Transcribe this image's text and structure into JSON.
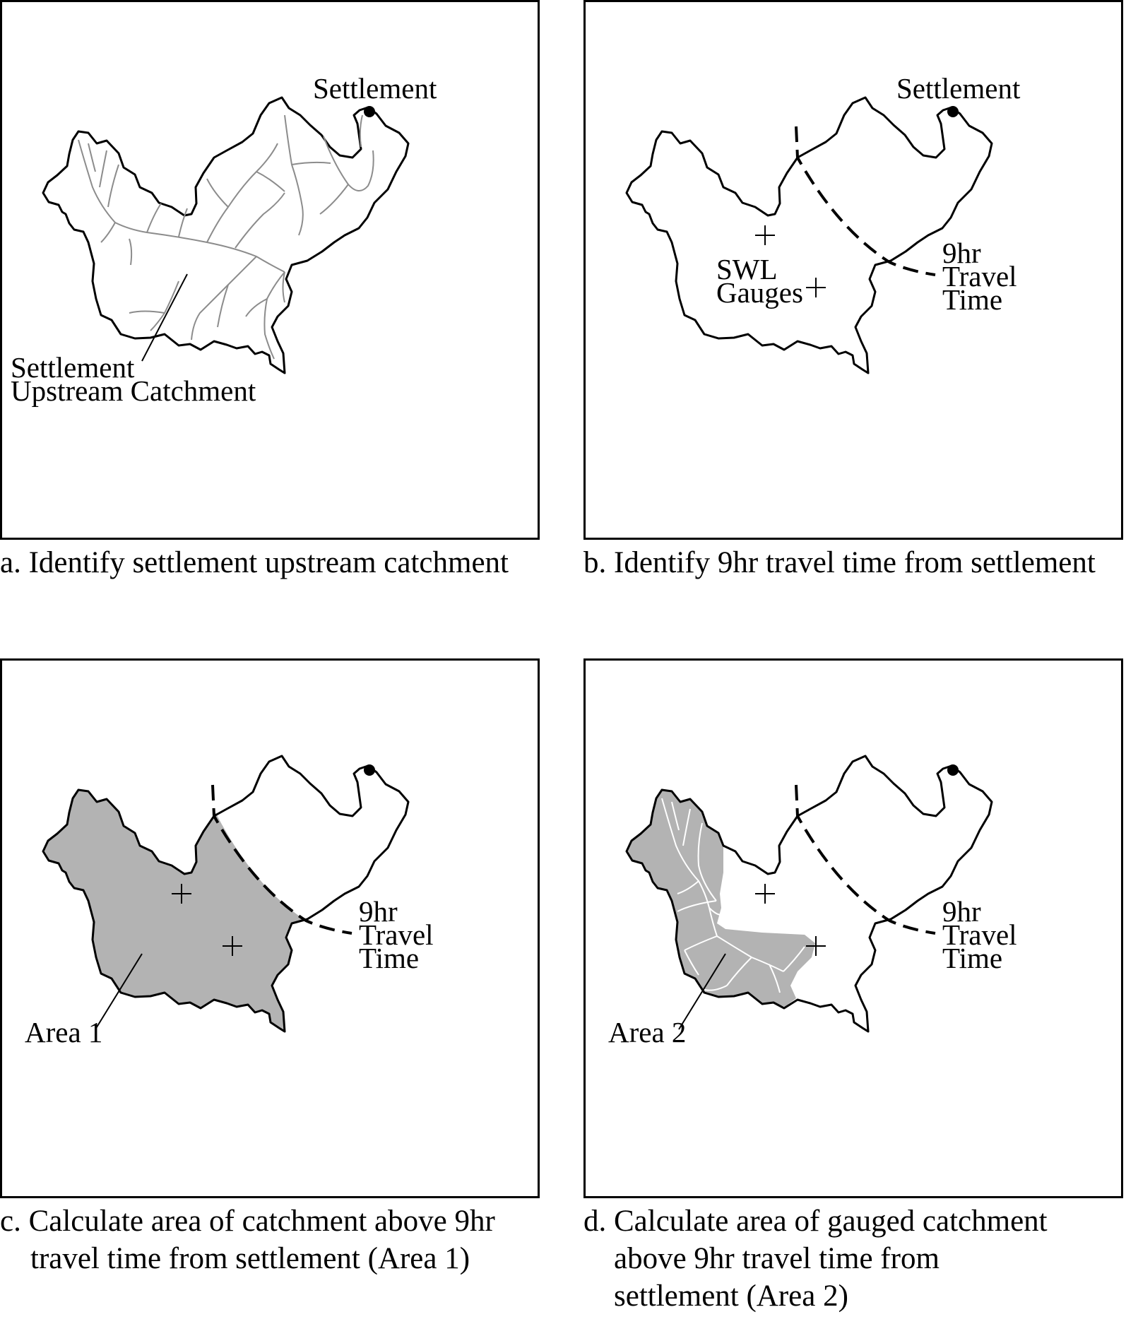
{
  "panels": {
    "a": {
      "settlement_label": "Settlement",
      "catchment_label_line1": "Settlement",
      "catchment_label_line2": "Upstream Catchment",
      "caption_line1": "a. Identify settlement upstream catchment"
    },
    "b": {
      "settlement_label": "Settlement",
      "gauges_label_line1": "SWL",
      "gauges_label_line2": "Gauges",
      "travel_line1": "9hr",
      "travel_line2": "Travel",
      "travel_line3": "Time",
      "caption_line1": "b. Identify 9hr travel time from settlement"
    },
    "c": {
      "area_label": "Area 1",
      "travel_line1": "9hr",
      "travel_line2": "Travel",
      "travel_line3": "Time",
      "caption_line1": "c. Calculate area of catchment above 9hr",
      "caption_line2": "travel time from settlement (Area 1)"
    },
    "d": {
      "area_label": "Area 2",
      "travel_line1": "9hr",
      "travel_line2": "Travel",
      "travel_line3": "Time",
      "caption_line1": "d. Calculate area of gauged catchment",
      "caption_line2": "above 9hr travel time from",
      "caption_line3": "settlement (Area 2)"
    }
  },
  "colors": {
    "outline": "#000000",
    "rivers": "#8c8c8c",
    "area_fill": "#b3b3b3",
    "rivers_on_fill": "#ffffff"
  }
}
